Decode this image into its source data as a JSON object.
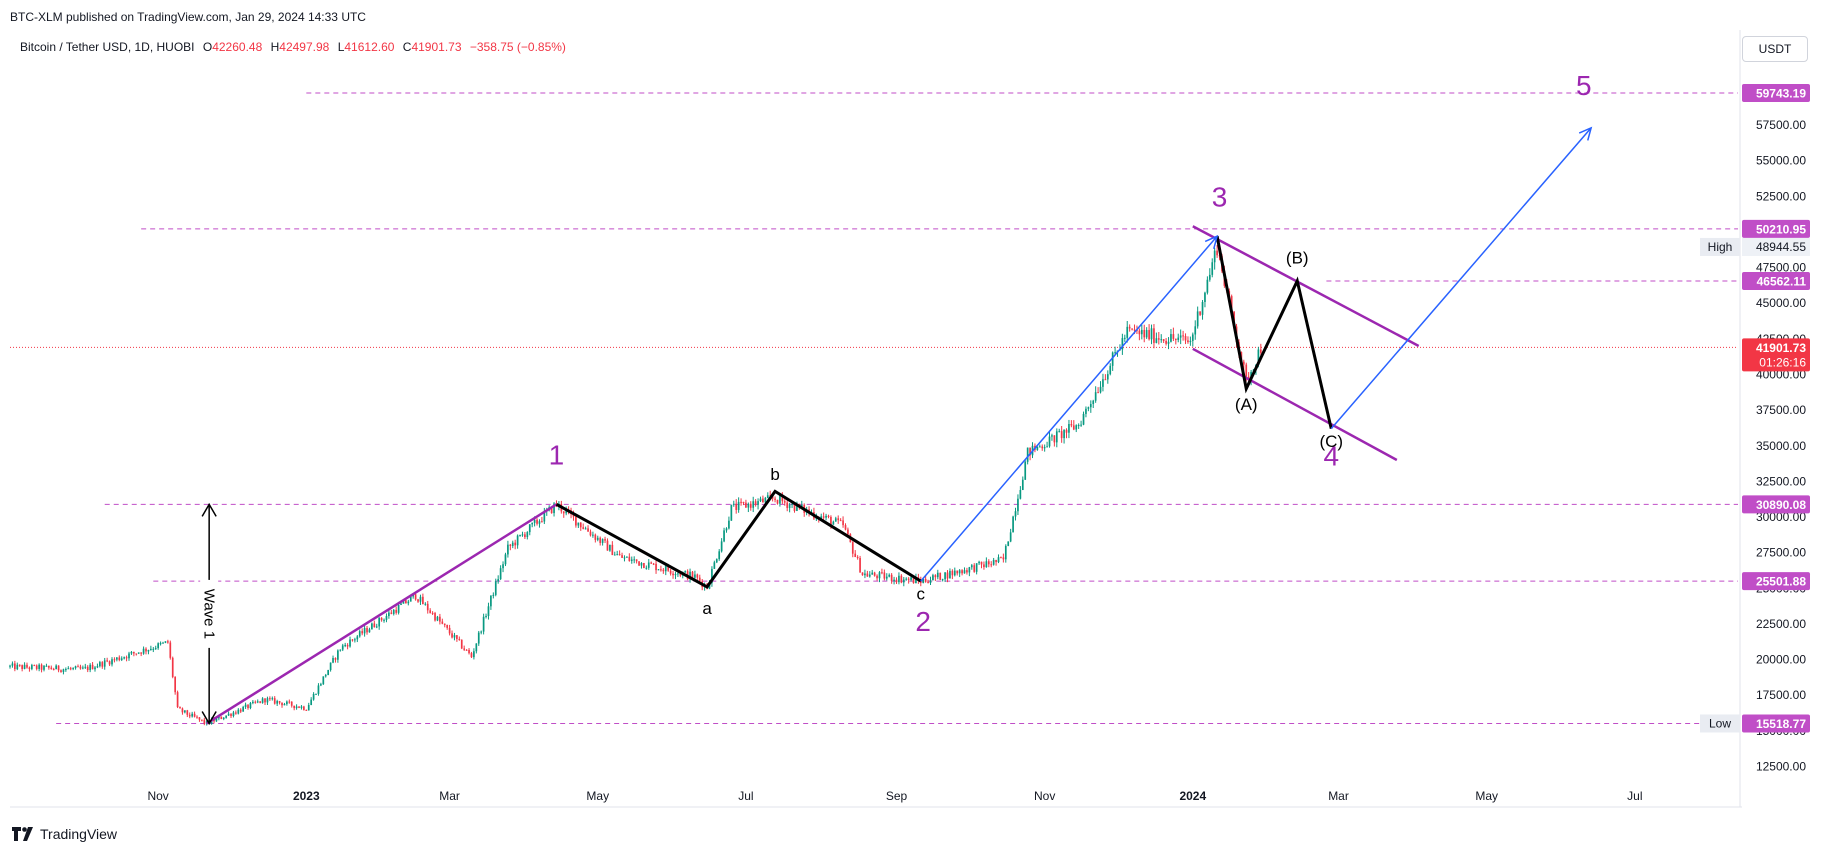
{
  "header": {
    "published": "BTC-XLM published on TradingView.com, Jan 29, 2024 14:33 UTC",
    "symbol": "Bitcoin / Tether USD, 1D, HUOBI",
    "ohlc": {
      "o_label": "O",
      "o": "42260.48",
      "h_label": "H",
      "h": "42497.98",
      "l_label": "L",
      "l": "41612.60",
      "c_label": "C",
      "c": "41901.73",
      "change": "−358.75 (−0.85%)"
    },
    "currency": "USDT"
  },
  "footer": {
    "brand": "TradingView"
  },
  "colors": {
    "up": "#089981",
    "down": "#f23645",
    "purple": "#9c27b0",
    "blue": "#2962ff",
    "black": "#000000",
    "level_dash": "#c04ec7",
    "axis_text": "#131722"
  },
  "chart_data": {
    "type": "candlestick",
    "title": "Bitcoin / Tether USD, 1D, HUOBI",
    "ylim": [
      10500,
      61500
    ],
    "y_ticks": [
      "12500.00",
      "15000.00",
      "17500.00",
      "20000.00",
      "22500.00",
      "25000.00",
      "27500.00",
      "30000.00",
      "32500.00",
      "35000.00",
      "37500.00",
      "40000.00",
      "42500.00",
      "45000.00",
      "47500.00",
      "52500.00",
      "55000.00",
      "57500.00"
    ],
    "x_ticks": [
      "Nov",
      "2023",
      "Mar",
      "May",
      "Jul",
      "Sep",
      "Nov",
      "2024",
      "Mar",
      "May",
      "Jul"
    ],
    "x_tick_dates": [
      "2022-11",
      "2023-01",
      "2023-03",
      "2023-05",
      "2023-07",
      "2023-09",
      "2023-11",
      "2024-01",
      "2024-03",
      "2024-05",
      "2024-07"
    ],
    "x_start": "2022-09-01",
    "x_end": "2024-08-10",
    "price_anchors": [
      {
        "date": "2022-09-01",
        "price": 19500
      },
      {
        "date": "2022-10-01",
        "price": 19300
      },
      {
        "date": "2022-11-05",
        "price": 21200
      },
      {
        "date": "2022-11-09",
        "price": 16500
      },
      {
        "date": "2022-11-21",
        "price": 15518.77
      },
      {
        "date": "2022-12-15",
        "price": 17200
      },
      {
        "date": "2023-01-01",
        "price": 16600
      },
      {
        "date": "2023-01-15",
        "price": 20800
      },
      {
        "date": "2023-02-15",
        "price": 24500
      },
      {
        "date": "2023-03-10",
        "price": 20200
      },
      {
        "date": "2023-03-25",
        "price": 27800
      },
      {
        "date": "2023-04-14",
        "price": 30890.08
      },
      {
        "date": "2023-05-10",
        "price": 27200
      },
      {
        "date": "2023-06-10",
        "price": 25800
      },
      {
        "date": "2023-06-15",
        "price": 25100
      },
      {
        "date": "2023-06-25",
        "price": 30600
      },
      {
        "date": "2023-07-13",
        "price": 31300
      },
      {
        "date": "2023-08-10",
        "price": 29400
      },
      {
        "date": "2023-08-18",
        "price": 26000
      },
      {
        "date": "2023-09-11",
        "price": 25501.88
      },
      {
        "date": "2023-10-15",
        "price": 27000
      },
      {
        "date": "2023-10-25",
        "price": 34500
      },
      {
        "date": "2023-11-15",
        "price": 36500
      },
      {
        "date": "2023-12-05",
        "price": 43000
      },
      {
        "date": "2023-12-31",
        "price": 42300
      },
      {
        "date": "2024-01-11",
        "price": 48944.55
      },
      {
        "date": "2024-01-23",
        "price": 39500
      },
      {
        "date": "2024-01-29",
        "price": 41901.73
      }
    ],
    "levels": [
      {
        "label": "59743.19",
        "price": 59743.19,
        "start": "2023-01-01"
      },
      {
        "label": "50210.95",
        "price": 50210.95,
        "start": "2022-10-25"
      },
      {
        "label": "46562.11",
        "price": 46562.11,
        "start": "2024-02-25"
      },
      {
        "label": "30890.08",
        "price": 30890.08,
        "start": "2022-10-10"
      },
      {
        "label": "25501.88",
        "price": 25501.88,
        "start": "2022-10-30"
      },
      {
        "label": "15518.77",
        "price": 15518.77,
        "start": "2022-09-20"
      }
    ],
    "last_price": {
      "label": "41901.73",
      "price": 41901.73,
      "countdown": "01:26:16"
    },
    "high_marker": {
      "tag": "High",
      "label": "48944.55",
      "price": 48944.55
    },
    "low_marker": {
      "tag": "Low",
      "label": "15518.77",
      "price": 15518.77
    },
    "annotations": {
      "wave1_marker": {
        "label": "Wave 1",
        "date": "2022-11-22",
        "from": 15518.77,
        "to": 30890.08
      },
      "wave_labels": [
        {
          "text": "1",
          "date": "2023-04-14",
          "price": 33700
        },
        {
          "text": "2",
          "date": "2023-09-12",
          "price": 22000
        },
        {
          "text": "3",
          "date": "2024-01-12",
          "price": 51800
        },
        {
          "text": "4",
          "date": "2024-02-27",
          "price": 33600
        },
        {
          "text": "5",
          "date": "2024-06-10",
          "price": 59600
        }
      ],
      "sub_labels": [
        {
          "text": "a",
          "date": "2023-06-15",
          "price": 23200
        },
        {
          "text": "b",
          "date": "2023-07-13",
          "price": 32600
        },
        {
          "text": "c",
          "date": "2023-09-11",
          "price": 24200
        },
        {
          "text": "(A)",
          "date": "2024-01-23",
          "price": 37500
        },
        {
          "text": "(B)",
          "date": "2024-02-13",
          "price": 47800
        },
        {
          "text": "(C)",
          "date": "2024-02-27",
          "price": 34900
        }
      ],
      "purple_segments": [
        [
          {
            "date": "2022-11-21",
            "price": 15518.77
          },
          {
            "date": "2023-04-14",
            "price": 30890.08
          }
        ],
        [
          {
            "date": "2024-01-01",
            "price": 50400
          },
          {
            "date": "2024-04-03",
            "price": 42000
          }
        ],
        [
          {
            "date": "2024-01-01",
            "price": 41800
          },
          {
            "date": "2024-03-25",
            "price": 34000
          }
        ]
      ],
      "black_path_abc": [
        {
          "date": "2023-04-14",
          "price": 30890.08
        },
        {
          "date": "2023-06-15",
          "price": 25100
        },
        {
          "date": "2023-07-13",
          "price": 31800
        },
        {
          "date": "2023-09-11",
          "price": 25501.88
        }
      ],
      "black_path_ABC": [
        {
          "date": "2024-01-11",
          "price": 49700
        },
        {
          "date": "2024-01-23",
          "price": 39000
        },
        {
          "date": "2024-02-13",
          "price": 46562.11
        },
        {
          "date": "2024-02-27",
          "price": 36200
        }
      ],
      "blue_arrows": [
        [
          {
            "date": "2023-09-11",
            "price": 25501.88
          },
          {
            "date": "2024-01-11",
            "price": 49700
          }
        ],
        [
          {
            "date": "2024-02-27",
            "price": 36200
          },
          {
            "date": "2024-06-13",
            "price": 57300
          }
        ]
      ]
    }
  }
}
